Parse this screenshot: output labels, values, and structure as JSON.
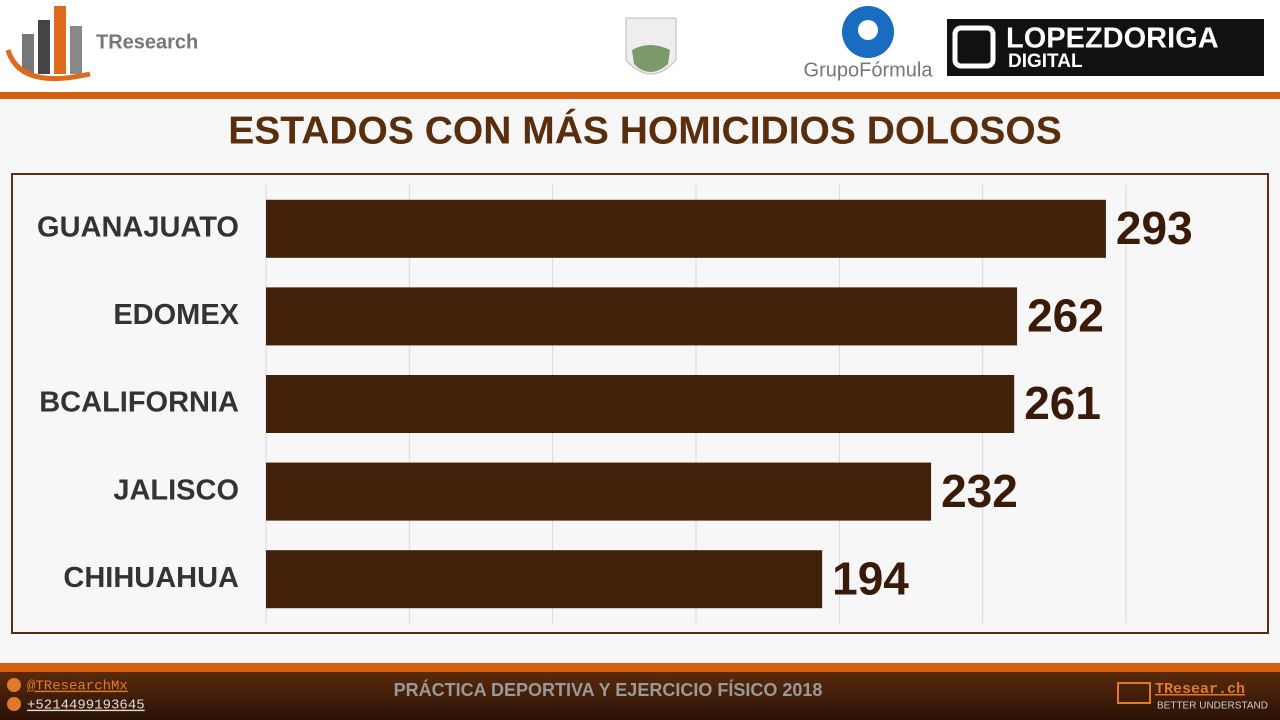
{
  "header": {
    "brand": "TResearch",
    "partner_1": "GrupoFórmula",
    "partner_2_line_1": "LOPEZDORIGA",
    "partner_2_line_2": "DIGITAL"
  },
  "chart_data": {
    "type": "bar",
    "orientation": "horizontal",
    "title": "ESTADOS CON MÁS HOMICIDIOS DOLOSOS",
    "categories": [
      "GUANAJUATO",
      "EDOMEX",
      "BCALIFORNIA",
      "JALISCO",
      "CHIHUAHUA"
    ],
    "values": [
      293,
      262,
      261,
      232,
      194
    ],
    "color": "#42200a",
    "xlim": [
      0,
      300
    ],
    "xticks": [
      0,
      50,
      100,
      150,
      200,
      250,
      300
    ],
    "grid": true
  },
  "footer": {
    "twitter": "@TResearchMx",
    "phone": "+5214499193645",
    "caption": "PRÁCTICA DEPORTIVA Y EJERCICIO FÍSICO 2018",
    "site": "TResear.ch",
    "tagline": "BETTER UNDERSTAND"
  }
}
